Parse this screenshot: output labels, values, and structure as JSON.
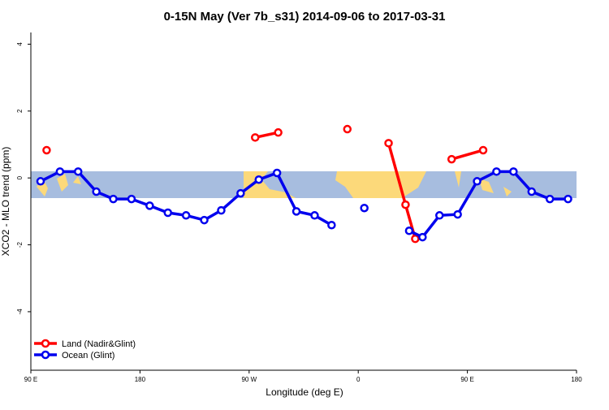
{
  "chart_data": {
    "type": "line",
    "title": "0-15N May (Ver 7b_s31)   2014-09-06 to 2017-03-31",
    "x_label": "Longitude (deg E)",
    "y_label": "XCO2 - MLO trend (ppm)",
    "xlim": [
      90,
      540
    ],
    "ylim": [
      -5.75,
      4.35
    ],
    "xticks": [
      {
        "value": 90,
        "label": "90 E"
      },
      {
        "value": 180,
        "label": "180"
      },
      {
        "value": 270,
        "label": "90 W"
      },
      {
        "value": 360,
        "label": "0"
      },
      {
        "value": 450,
        "label": "90 E"
      },
      {
        "value": 540,
        "label": "180"
      }
    ],
    "yticks": [
      -4,
      -2,
      0,
      2,
      4
    ],
    "legend": "bottom-left",
    "series": [
      {
        "name": "Land (Nadir&Glint)",
        "color": "#ff0000",
        "x": [
          103,
          null,
          275,
          294,
          null,
          351,
          null,
          385,
          399,
          407,
          null,
          437,
          463
        ],
        "values": [
          0.83,
          null,
          1.21,
          1.36,
          null,
          1.46,
          null,
          1.04,
          -0.8,
          -1.82,
          null,
          0.56,
          0.83
        ]
      },
      {
        "name": "Ocean (Glint)",
        "color": "#0000ee",
        "x": [
          98,
          114,
          129,
          144,
          158,
          173,
          188,
          203,
          218,
          233,
          247,
          263,
          278,
          293,
          309,
          324,
          338,
          null,
          365,
          null,
          402,
          413,
          427,
          442,
          458,
          474,
          488,
          503,
          518,
          533
        ],
        "values": [
          -0.1,
          0.19,
          0.19,
          -0.41,
          -0.63,
          -0.63,
          -0.83,
          -1.04,
          -1.12,
          -1.26,
          -0.97,
          -0.46,
          -0.05,
          0.15,
          -1.0,
          -1.12,
          -1.41,
          null,
          -0.9,
          null,
          -1.58,
          -1.77,
          -1.12,
          -1.09,
          -0.1,
          0.19,
          0.19,
          -0.41,
          -0.63,
          -0.63
        ]
      }
    ]
  }
}
